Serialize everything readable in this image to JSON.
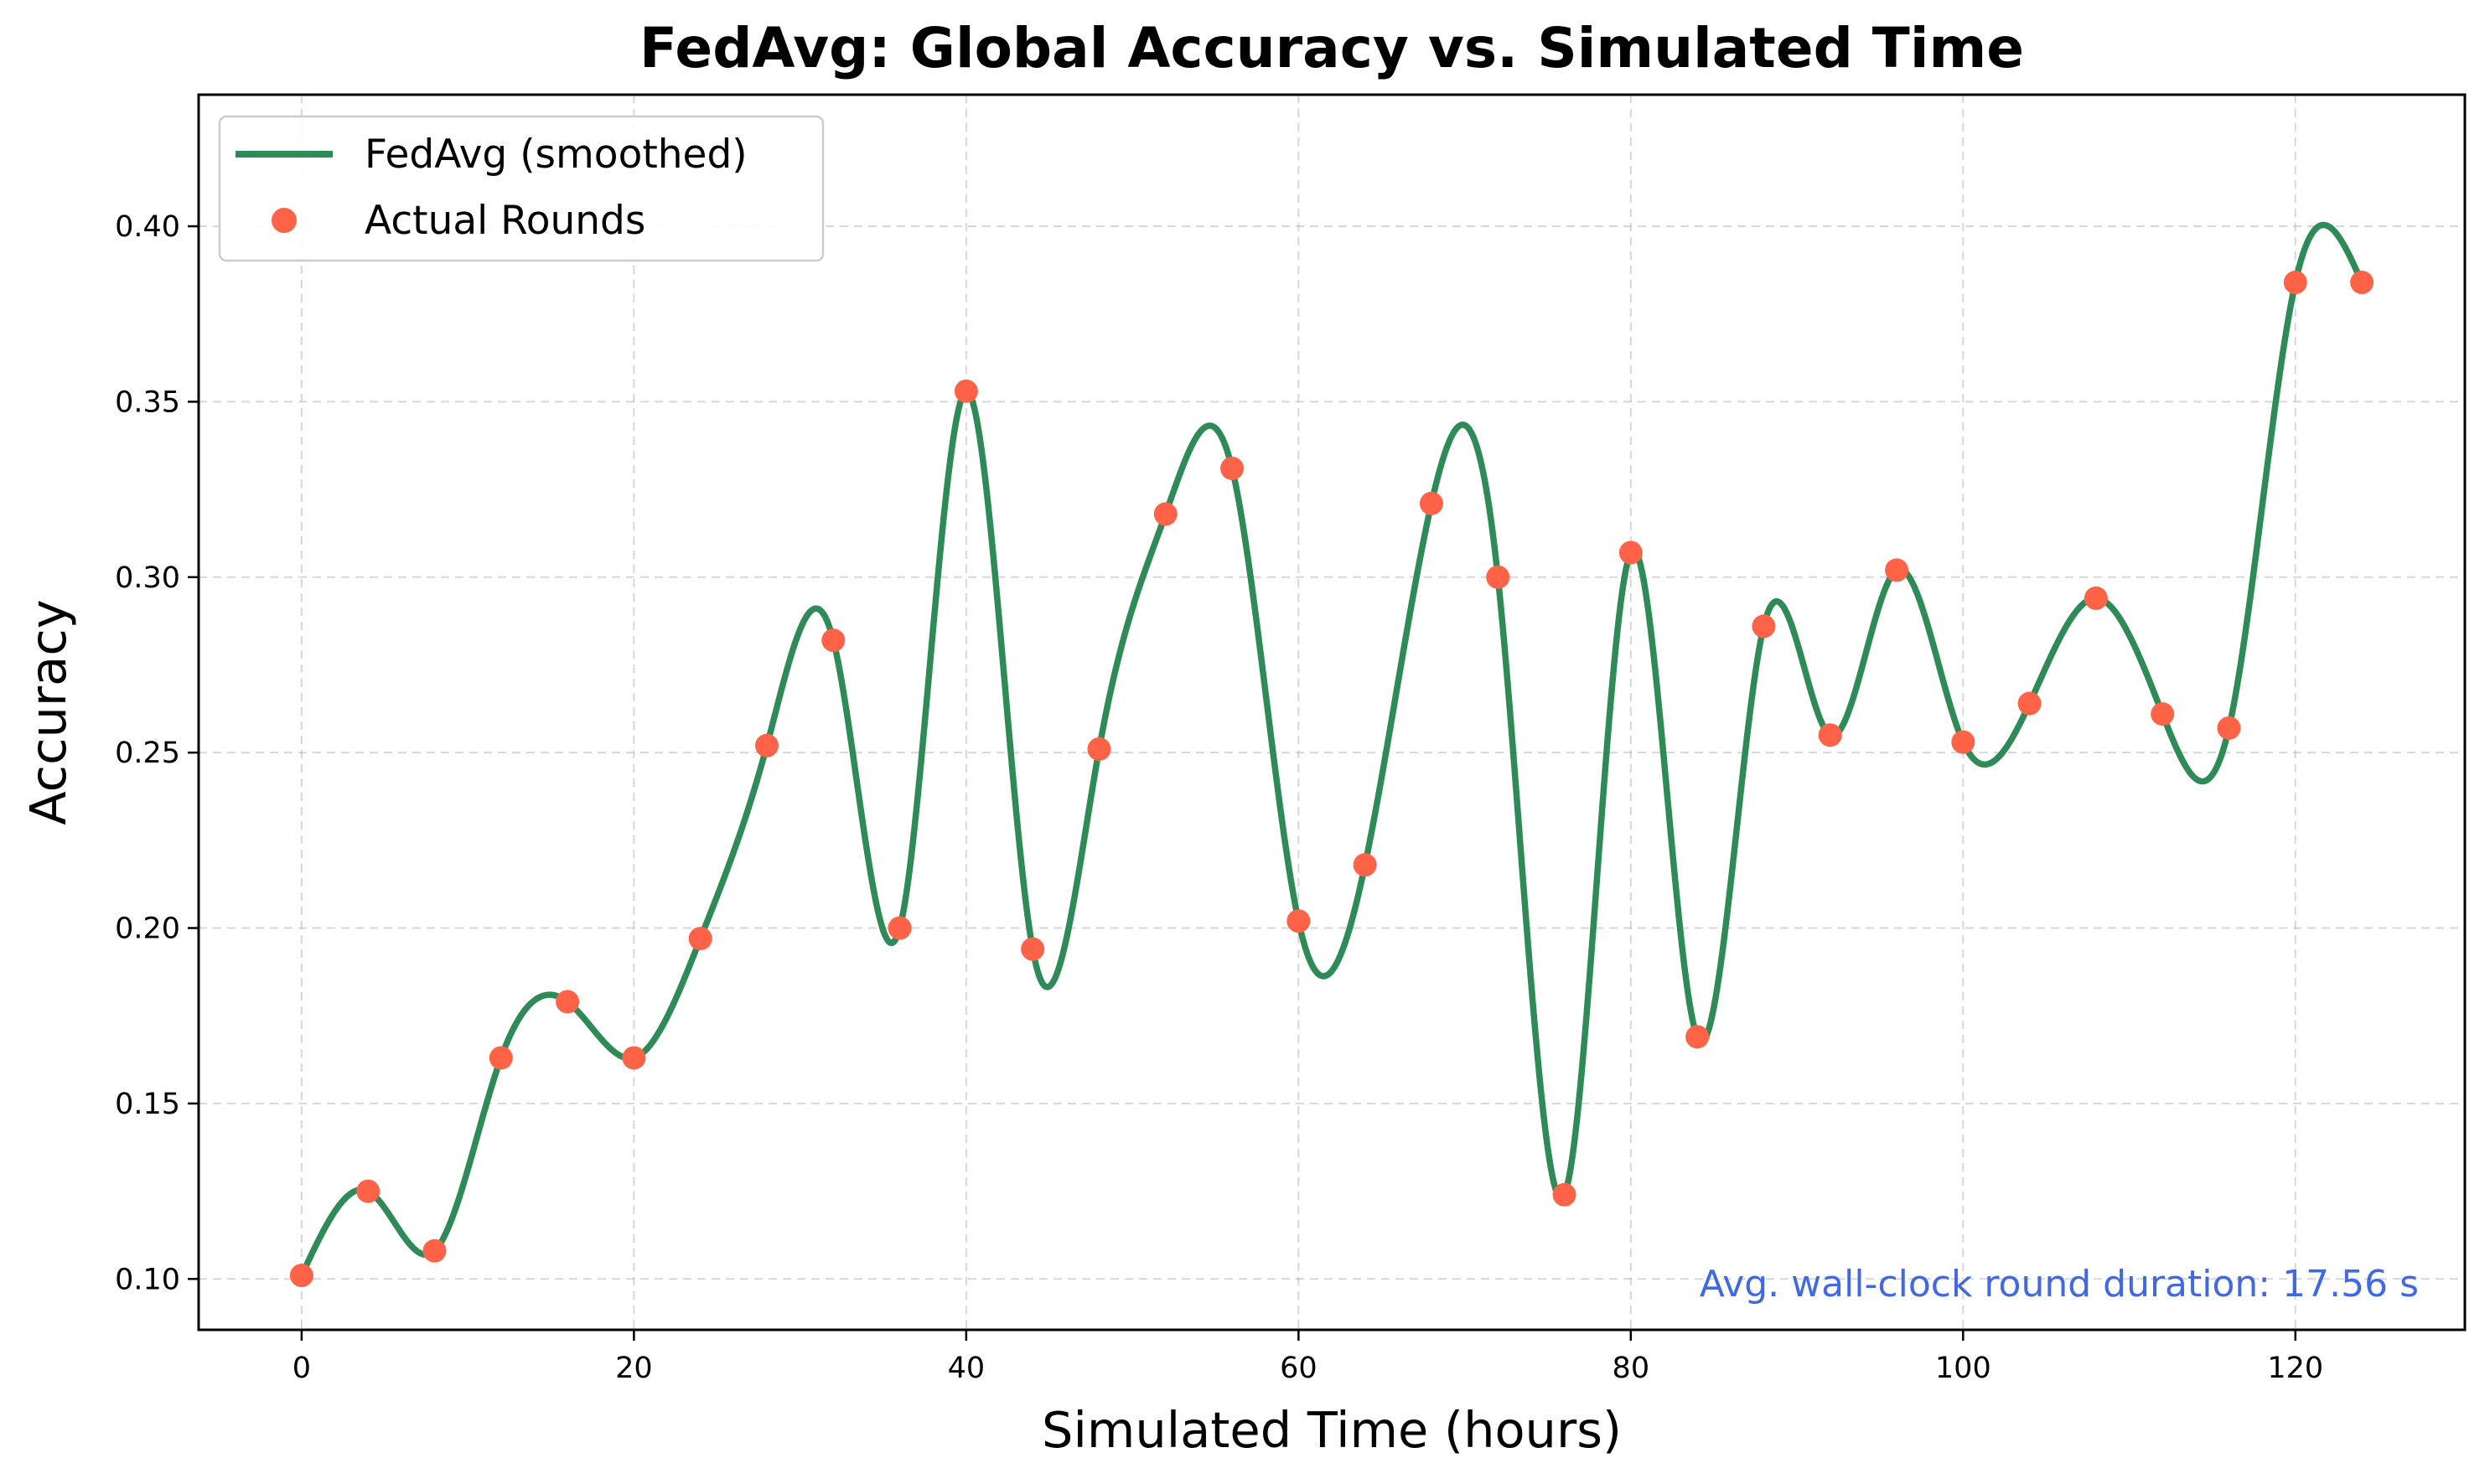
{
  "chart_data": {
    "type": "line",
    "title": "FedAvg: Global Accuracy vs. Simulated Time",
    "xlabel": "Simulated Time (hours)",
    "ylabel": "Accuracy",
    "xlim": [
      -6.2,
      130.2
    ],
    "ylim": [
      0.0855,
      0.4375
    ],
    "x_ticks": [
      0,
      20,
      40,
      60,
      80,
      100,
      120
    ],
    "x_tick_labels": [
      "0",
      "20",
      "40",
      "60",
      "80",
      "100",
      "120"
    ],
    "y_ticks": [
      0.1,
      0.15,
      0.2,
      0.25,
      0.3,
      0.35,
      0.4
    ],
    "y_tick_labels": [
      "0.10",
      "0.15",
      "0.20",
      "0.25",
      "0.30",
      "0.35",
      "0.40"
    ],
    "grid": true,
    "legend_position": "top-left",
    "series": [
      {
        "name": "FedAvg (smoothed)",
        "kind": "line",
        "color": "#2e8b57",
        "values_from": "Actual Rounds"
      },
      {
        "name": "Actual Rounds",
        "kind": "scatter",
        "color": "#ff6347",
        "x": [
          0,
          4,
          8,
          12,
          16,
          20,
          24,
          28,
          32,
          36,
          40,
          44,
          48,
          52,
          56,
          60,
          64,
          68,
          72,
          76,
          80,
          84,
          88,
          92,
          96,
          100,
          104,
          108,
          112,
          116,
          120,
          124
        ],
        "y": [
          0.101,
          0.125,
          0.108,
          0.163,
          0.179,
          0.163,
          0.197,
          0.252,
          0.282,
          0.2,
          0.353,
          0.194,
          0.251,
          0.318,
          0.331,
          0.202,
          0.218,
          0.321,
          0.3,
          0.124,
          0.307,
          0.169,
          0.286,
          0.255,
          0.302,
          0.253,
          0.264,
          0.294,
          0.261,
          0.257,
          0.384,
          0.384
        ]
      }
    ],
    "annotation": {
      "text": "Avg. wall-clock round duration: 17.56 s",
      "color": "#4169e1"
    }
  }
}
